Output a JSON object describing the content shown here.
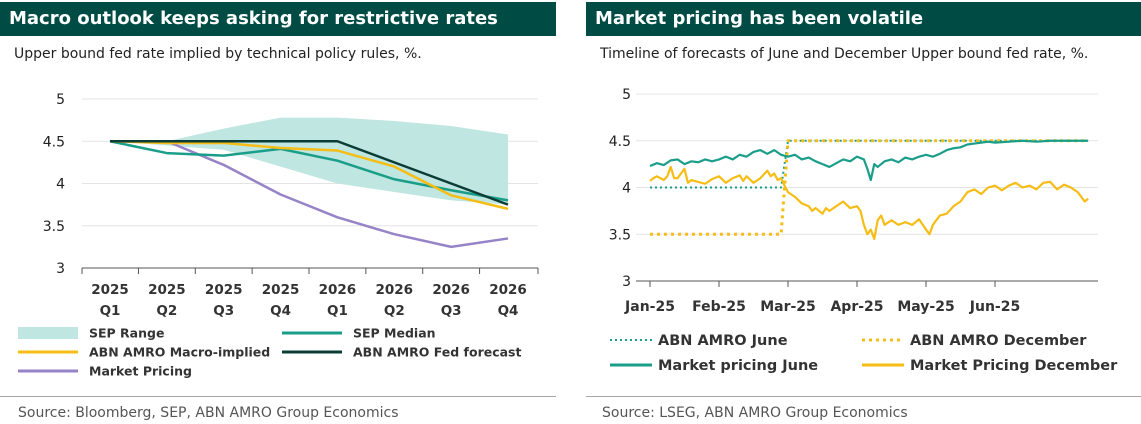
{
  "left_panel": {
    "title": "Macro outlook keeps asking for restrictive rates",
    "subtitle": "Upper bound fed rate implied by technical policy rules, %.",
    "source": "Source: Bloomberg, SEP, ABN AMRO Group Economics"
  },
  "right_panel": {
    "title": "Market pricing has been volatile",
    "subtitle": "Timeline of forecasts of June and December Upper bound fed rate, %.",
    "source": "Source: LSEG, ABN AMRO Group Economics"
  },
  "colors": {
    "header_bg": "#004c45",
    "sep_range": "#bfe6e0",
    "sep_median": "#1a9e8a",
    "abn_macro": "#f5bd16",
    "abn_fed": "#0b3c36",
    "market_pricing": "#9683c8",
    "abn_june": "#1a9e8a",
    "abn_december": "#f5bd16",
    "market_june": "#1a9e8a",
    "market_december": "#f5bd16"
  },
  "chart_data": [
    {
      "type": "line",
      "categories": [
        [
          "2025",
          "Q1"
        ],
        [
          "2025",
          "Q2"
        ],
        [
          "2025",
          "Q3"
        ],
        [
          "2025",
          "Q4"
        ],
        [
          "2026",
          "Q1"
        ],
        [
          "2026",
          "Q2"
        ],
        [
          "2026",
          "Q3"
        ],
        [
          "2026",
          "Q4"
        ]
      ],
      "ylim": [
        3,
        5
      ],
      "yticks": [
        "5",
        "4.5",
        "4",
        "3.5",
        "3"
      ],
      "ytick_values": [
        5,
        4.5,
        4,
        3.5,
        3
      ],
      "grid": true,
      "legend_position": "bottom",
      "band": {
        "name": "SEP Range",
        "lower": [
          4.5,
          4.45,
          4.4,
          4.2,
          4.0,
          3.9,
          3.8,
          3.75
        ],
        "upper": [
          4.5,
          4.5,
          4.65,
          4.78,
          4.78,
          4.74,
          4.68,
          4.58
        ]
      },
      "series": [
        {
          "name": "SEP Median",
          "color_key": "sep_median",
          "values": [
            4.5,
            4.36,
            4.33,
            4.41,
            4.27,
            4.05,
            3.92,
            3.8
          ]
        },
        {
          "name": "ABN AMRO Macro-implied",
          "color_key": "abn_macro",
          "values": [
            4.5,
            4.48,
            4.48,
            4.42,
            4.39,
            4.2,
            3.86,
            3.7
          ]
        },
        {
          "name": "ABN AMRO Fed forecast",
          "color_key": "abn_fed",
          "values": [
            4.5,
            4.5,
            4.5,
            4.5,
            4.5,
            4.25,
            4.0,
            3.75
          ]
        },
        {
          "name": "Market Pricing",
          "color_key": "market_pricing",
          "values": [
            4.5,
            4.5,
            4.22,
            3.87,
            3.6,
            3.4,
            3.25,
            3.35
          ]
        }
      ],
      "legend": [
        "SEP Range",
        "SEP Median",
        "ABN AMRO Macro-implied",
        "ABN AMRO Fed forecast",
        "Market Pricing"
      ]
    },
    {
      "type": "line",
      "xticks": [
        "Jan-25",
        "Feb-25",
        "Mar-25",
        "Apr-25",
        "May-25",
        "Jun-25"
      ],
      "xlim_months": [
        0,
        6.4
      ],
      "ylim": [
        3,
        5
      ],
      "yticks": [
        "5",
        "4.5",
        "4",
        "3.5",
        "3"
      ],
      "ytick_values": [
        5,
        4.5,
        4,
        3.5,
        3
      ],
      "grid": true,
      "legend_position": "bottom",
      "series": [
        {
          "name": "ABN AMRO June",
          "color_key": "abn_june",
          "style": "dotted",
          "points": [
            [
              0,
              4.0
            ],
            [
              1.9,
              4.0
            ],
            [
              2.0,
              4.5
            ],
            [
              6.35,
              4.5
            ]
          ]
        },
        {
          "name": "ABN AMRO December",
          "color_key": "abn_december",
          "style": "dotted",
          "points": [
            [
              0,
              3.5
            ],
            [
              1.9,
              3.5
            ],
            [
              2.0,
              4.5
            ],
            [
              6.35,
              4.5
            ]
          ]
        },
        {
          "name": "Market pricing June",
          "color_key": "market_june",
          "style": "solid",
          "points": [
            [
              0,
              4.23
            ],
            [
              0.1,
              4.26
            ],
            [
              0.2,
              4.24
            ],
            [
              0.3,
              4.29
            ],
            [
              0.4,
              4.3
            ],
            [
              0.5,
              4.25
            ],
            [
              0.6,
              4.28
            ],
            [
              0.7,
              4.27
            ],
            [
              0.8,
              4.3
            ],
            [
              0.9,
              4.28
            ],
            [
              1.0,
              4.3
            ],
            [
              1.1,
              4.33
            ],
            [
              1.2,
              4.3
            ],
            [
              1.3,
              4.35
            ],
            [
              1.4,
              4.33
            ],
            [
              1.5,
              4.38
            ],
            [
              1.6,
              4.4
            ],
            [
              1.7,
              4.36
            ],
            [
              1.8,
              4.4
            ],
            [
              1.9,
              4.35
            ],
            [
              2.0,
              4.33
            ],
            [
              2.1,
              4.35
            ],
            [
              2.2,
              4.3
            ],
            [
              2.3,
              4.32
            ],
            [
              2.4,
              4.28
            ],
            [
              2.5,
              4.25
            ],
            [
              2.6,
              4.22
            ],
            [
              2.7,
              4.26
            ],
            [
              2.8,
              4.3
            ],
            [
              2.9,
              4.28
            ],
            [
              3.0,
              4.33
            ],
            [
              3.1,
              4.3
            ],
            [
              3.15,
              4.2
            ],
            [
              3.2,
              4.08
            ],
            [
              3.25,
              4.25
            ],
            [
              3.3,
              4.22
            ],
            [
              3.4,
              4.28
            ],
            [
              3.5,
              4.3
            ],
            [
              3.6,
              4.27
            ],
            [
              3.7,
              4.32
            ],
            [
              3.8,
              4.3
            ],
            [
              3.9,
              4.33
            ],
            [
              4.0,
              4.35
            ],
            [
              4.1,
              4.33
            ],
            [
              4.2,
              4.36
            ],
            [
              4.3,
              4.4
            ],
            [
              4.4,
              4.42
            ],
            [
              4.5,
              4.43
            ],
            [
              4.6,
              4.46
            ],
            [
              4.7,
              4.47
            ],
            [
              4.8,
              4.48
            ],
            [
              4.9,
              4.49
            ],
            [
              5.0,
              4.48
            ],
            [
              5.2,
              4.49
            ],
            [
              5.4,
              4.5
            ],
            [
              5.6,
              4.49
            ],
            [
              5.8,
              4.5
            ],
            [
              6.0,
              4.5
            ],
            [
              6.2,
              4.5
            ],
            [
              6.35,
              4.5
            ]
          ]
        },
        {
          "name": "Market Pricing December",
          "color_key": "market_december",
          "style": "solid",
          "points": [
            [
              0,
              4.07
            ],
            [
              0.05,
              4.1
            ],
            [
              0.1,
              4.12
            ],
            [
              0.2,
              4.08
            ],
            [
              0.25,
              4.12
            ],
            [
              0.3,
              4.22
            ],
            [
              0.35,
              4.1
            ],
            [
              0.4,
              4.1
            ],
            [
              0.5,
              4.2
            ],
            [
              0.55,
              4.05
            ],
            [
              0.6,
              4.08
            ],
            [
              0.7,
              4.06
            ],
            [
              0.8,
              4.04
            ],
            [
              0.9,
              4.09
            ],
            [
              1.0,
              4.12
            ],
            [
              1.1,
              4.05
            ],
            [
              1.2,
              4.1
            ],
            [
              1.3,
              4.13
            ],
            [
              1.35,
              4.07
            ],
            [
              1.4,
              4.12
            ],
            [
              1.5,
              4.05
            ],
            [
              1.6,
              4.1
            ],
            [
              1.7,
              4.18
            ],
            [
              1.75,
              4.12
            ],
            [
              1.8,
              4.15
            ],
            [
              1.85,
              4.08
            ],
            [
              1.9,
              4.1
            ],
            [
              1.95,
              4.02
            ],
            [
              2.0,
              3.95
            ],
            [
              2.1,
              3.9
            ],
            [
              2.2,
              3.83
            ],
            [
              2.3,
              3.8
            ],
            [
              2.35,
              3.75
            ],
            [
              2.4,
              3.78
            ],
            [
              2.5,
              3.72
            ],
            [
              2.55,
              3.78
            ],
            [
              2.6,
              3.75
            ],
            [
              2.7,
              3.8
            ],
            [
              2.8,
              3.85
            ],
            [
              2.9,
              3.78
            ],
            [
              3.0,
              3.8
            ],
            [
              3.05,
              3.75
            ],
            [
              3.1,
              3.6
            ],
            [
              3.15,
              3.5
            ],
            [
              3.2,
              3.55
            ],
            [
              3.25,
              3.45
            ],
            [
              3.3,
              3.65
            ],
            [
              3.35,
              3.7
            ],
            [
              3.4,
              3.6
            ],
            [
              3.5,
              3.65
            ],
            [
              3.6,
              3.6
            ],
            [
              3.7,
              3.63
            ],
            [
              3.8,
              3.6
            ],
            [
              3.9,
              3.66
            ],
            [
              4.0,
              3.55
            ],
            [
              4.05,
              3.5
            ],
            [
              4.1,
              3.6
            ],
            [
              4.2,
              3.7
            ],
            [
              4.3,
              3.72
            ],
            [
              4.4,
              3.8
            ],
            [
              4.5,
              3.85
            ],
            [
              4.6,
              3.95
            ],
            [
              4.7,
              3.98
            ],
            [
              4.8,
              3.93
            ],
            [
              4.9,
              4.0
            ],
            [
              5.0,
              4.02
            ],
            [
              5.1,
              3.97
            ],
            [
              5.2,
              4.02
            ],
            [
              5.3,
              4.05
            ],
            [
              5.4,
              4.0
            ],
            [
              5.5,
              4.02
            ],
            [
              5.6,
              3.98
            ],
            [
              5.7,
              4.05
            ],
            [
              5.8,
              4.06
            ],
            [
              5.9,
              3.98
            ],
            [
              6.0,
              4.03
            ],
            [
              6.1,
              4.0
            ],
            [
              6.2,
              3.95
            ],
            [
              6.3,
              3.85
            ],
            [
              6.35,
              3.88
            ]
          ]
        }
      ],
      "legend": [
        "ABN AMRO June",
        "ABN AMRO December",
        "Market pricing June",
        "Market Pricing December"
      ]
    }
  ]
}
